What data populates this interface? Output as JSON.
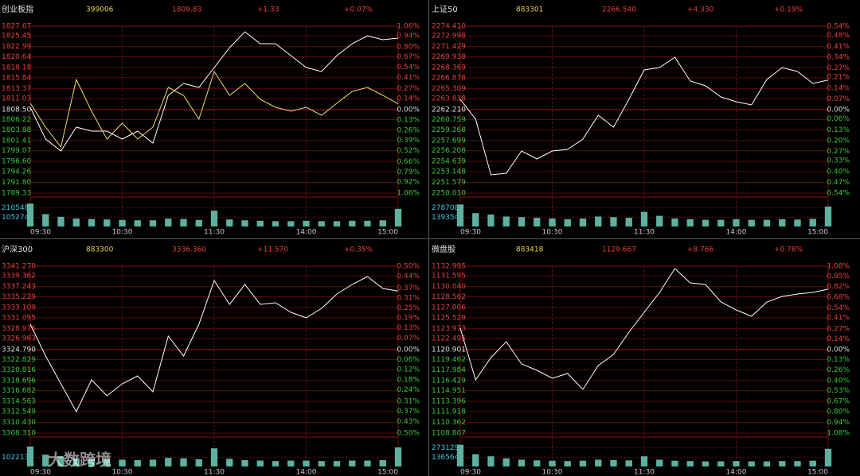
{
  "chart_data": [
    {
      "type": "line",
      "title": "创业板指",
      "quote": [
        "399006",
        "1809.83",
        "+1.33",
        "+0.07%"
      ],
      "x": [
        0,
        10,
        20,
        30,
        40,
        50,
        60,
        70,
        80,
        90,
        100,
        110,
        120,
        130,
        140,
        150,
        160,
        170,
        180,
        190,
        200,
        210,
        220,
        230,
        240
      ],
      "xlim": [
        0,
        240
      ],
      "xticks": [
        {
          "value": 0,
          "label": "09:30"
        },
        {
          "value": 60,
          "label": "10:30"
        },
        {
          "value": 120,
          "label": "11:30"
        },
        {
          "value": 180,
          "label": "14:00"
        },
        {
          "value": 240,
          "label": "15:00"
        }
      ],
      "series": [
        {
          "color": "#ffffff",
          "values": [
            1809.05,
            1801.74,
            1799.01,
            1804.48,
            1803.57,
            1803.57,
            1801.74,
            1803.57,
            1800.83,
            1811.79,
            1814.52,
            1813.61,
            1818.18,
            1822.74,
            1826.39,
            1823.65,
            1823.65,
            1820.91,
            1818.18,
            1817.26,
            1820.91,
            1823.65,
            1825.48,
            1824.57,
            1824.93
          ]
        },
        {
          "color": "#f0e060",
          "values": [
            1809.96,
            1804.48,
            1799.92,
            1815.44,
            1808.13,
            1801.74,
            1805.4,
            1801.74,
            1804.48,
            1813.61,
            1811.79,
            1806.31,
            1817.26,
            1811.79,
            1814.52,
            1810.87,
            1809.05,
            1808.13,
            1809.05,
            1807.22,
            1809.96,
            1812.7,
            1813.61,
            1811.79,
            1809.83
          ]
        }
      ],
      "ylim": [
        1789.33,
        1827.67
      ],
      "yticks": [
        1827.67,
        1825.45,
        1822.99,
        1820.64,
        1818.18,
        1815.84,
        1813.37,
        1811.03,
        {
          "value": 1808.5,
          "label": "1808.50"
        },
        1806.22,
        1803.88,
        1801.41,
        1799.07,
        {
          "value": 1796.6,
          "label": "1796.60"
        },
        1794.26,
        {
          "value": 1791.8,
          "label": "1791.80"
        },
        1789.33
      ],
      "y2lim": [
        -1.06,
        1.06
      ],
      "y2ticks": [
        {
          "value": 1.06,
          "label": "1.06%"
        },
        {
          "value": 0.94,
          "label": "0.94%"
        },
        {
          "value": 0.8,
          "label": "0.80%"
        },
        {
          "value": 0.67,
          "label": "0.67%"
        },
        {
          "value": 0.54,
          "label": "0.54%"
        },
        {
          "value": 0.41,
          "label": "0.41%"
        },
        {
          "value": 0.27,
          "label": "0.27%"
        },
        {
          "value": 0.14,
          "label": "0.14%"
        },
        {
          "value": 0,
          "label": "0.00%"
        },
        {
          "value": -0.13,
          "label": "0.13%"
        },
        {
          "value": -0.26,
          "label": "0.26%"
        },
        {
          "value": -0.39,
          "label": "0.39%"
        },
        {
          "value": -0.52,
          "label": "0.52%"
        },
        {
          "value": -0.66,
          "label": "0.66%"
        },
        {
          "value": -0.79,
          "label": "0.79%"
        },
        {
          "value": -0.92,
          "label": "0.92%"
        },
        {
          "value": -1.06,
          "label": "1.06%"
        }
      ],
      "volume": {
        "color": "#5fb0a0",
        "ylim": [
          0,
          3158226
        ],
        "yticks": [
          2105484,
          1052742
        ],
        "values": [
          2600000,
          1400000,
          1100000,
          900000,
          850000,
          800000,
          750000,
          700000,
          700000,
          900000,
          850000,
          750000,
          1800000,
          800000,
          700000,
          650000,
          600000,
          600000,
          650000,
          600000,
          600000,
          650000,
          650000,
          700000,
          2000000
        ]
      }
    },
    {
      "type": "line",
      "title": "上证50",
      "quote": [
        "883301",
        "2266.540",
        "+4.330",
        "+0.19%"
      ],
      "x": [
        0,
        10,
        20,
        30,
        40,
        50,
        60,
        70,
        80,
        90,
        100,
        110,
        120,
        130,
        140,
        150,
        160,
        170,
        180,
        190,
        200,
        210,
        220,
        230,
        240
      ],
      "xlim": [
        0,
        240
      ],
      "xticks": [
        {
          "value": 0,
          "label": "09:30"
        },
        {
          "value": 60,
          "label": "10:30"
        },
        {
          "value": 120,
          "label": "11:30"
        },
        {
          "value": 180,
          "label": "14:00"
        },
        {
          "value": 240,
          "label": "15:00"
        }
      ],
      "series": [
        {
          "color": "#ffffff",
          "values": [
            2263.72,
            2260.82,
            2252.68,
            2252.91,
            2256.17,
            2255.01,
            2256.17,
            2256.4,
            2257.91,
            2261.4,
            2259.65,
            2263.72,
            2268.02,
            2268.37,
            2269.88,
            2266.39,
            2265.7,
            2264.07,
            2263.37,
            2262.91,
            2266.63,
            2268.37,
            2267.79,
            2266.04,
            2266.54
          ]
        }
      ],
      "ylim": [
        2250.01,
        2274.41
      ],
      "yticks": [
        {
          "value": 2274.41,
          "label": "2274.410"
        },
        2272.998,
        2271.429,
        2269.938,
        2268.369,
        2266.878,
        2265.309,
        2263.818,
        {
          "value": 2262.21,
          "label": "2262.210"
        },
        2260.759,
        2259.268,
        2257.699,
        2256.208,
        2254.639,
        2253.148,
        2251.579,
        {
          "value": 2250.01,
          "label": "2250.010"
        }
      ],
      "y2lim": [
        -0.54,
        0.54
      ],
      "y2ticks": [
        {
          "value": 0.54,
          "label": "0.54%"
        },
        {
          "value": 0.48,
          "label": "0.48%"
        },
        {
          "value": 0.41,
          "label": "0.41%"
        },
        {
          "value": 0.34,
          "label": "0.34%"
        },
        {
          "value": 0.27,
          "label": "0.27%"
        },
        {
          "value": 0.21,
          "label": "0.21%"
        },
        {
          "value": 0.14,
          "label": "0.14%"
        },
        {
          "value": 0.07,
          "label": "0.07%"
        },
        {
          "value": 0,
          "label": "0.00%"
        },
        {
          "value": -0.06,
          "label": "0.06%"
        },
        {
          "value": -0.13,
          "label": "0.13%"
        },
        {
          "value": -0.2,
          "label": "0.20%"
        },
        {
          "value": -0.27,
          "label": "0.27%"
        },
        {
          "value": -0.33,
          "label": "0.33%"
        },
        {
          "value": -0.4,
          "label": "0.40%"
        },
        {
          "value": -0.47,
          "label": "0.47%"
        },
        {
          "value": -0.54,
          "label": "0.54%"
        }
      ],
      "volume": {
        "color": "#5fb0a0",
        "ylim": [
          0,
          418062
        ],
        "yticks": [
          278708,
          139354
        ],
        "values": [
          330000,
          200000,
          180000,
          150000,
          140000,
          130000,
          120000,
          110000,
          120000,
          150000,
          140000,
          130000,
          220000,
          160000,
          120000,
          110000,
          100000,
          100000,
          110000,
          100000,
          100000,
          110000,
          105000,
          115000,
          300000
        ]
      }
    },
    {
      "type": "line",
      "title": "沪深300",
      "quote": [
        "883300",
        "3336.360",
        "+11.570",
        "+0.35%"
      ],
      "x": [
        0,
        10,
        20,
        30,
        40,
        50,
        60,
        70,
        80,
        90,
        100,
        110,
        120,
        130,
        140,
        150,
        160,
        170,
        180,
        190,
        200,
        210,
        220,
        230,
        240
      ],
      "xlim": [
        0,
        240
      ],
      "xticks": [
        {
          "value": 0,
          "label": "09:30"
        },
        {
          "value": 60,
          "label": "10:30"
        },
        {
          "value": 120,
          "label": "11:30"
        },
        {
          "value": 180,
          "label": "14:00"
        },
        {
          "value": 240,
          "label": "15:00"
        }
      ],
      "series": [
        {
          "color": "#ffffff",
          "values": [
            3329.81,
            3323.53,
            3318.04,
            3312.55,
            3318.83,
            3315.69,
            3318.04,
            3319.61,
            3316.47,
            3327.46,
            3323.53,
            3329.81,
            3338.44,
            3333.74,
            3337.66,
            3333.74,
            3334.05,
            3332.17,
            3331.07,
            3332.95,
            3335.78,
            3337.66,
            3339.23,
            3336.88,
            3336.36
          ]
        }
      ],
      "ylim": [
        3308.31,
        3341.27
      ],
      "yticks": [
        {
          "value": 3341.27,
          "label": "3341.270"
        },
        3339.362,
        3337.243,
        3335.229,
        3333.109,
        3331.095,
        3328.976,
        3326.963,
        {
          "value": 3324.79,
          "label": "3324.790"
        },
        3322.829,
        3320.816,
        3318.696,
        3316.682,
        3314.563,
        3312.549,
        {
          "value": 3310.43,
          "label": "3310.430"
        },
        {
          "value": 3308.31,
          "label": "3308.310"
        }
      ],
      "y2lim": [
        -0.5,
        0.5
      ],
      "y2ticks": [
        {
          "value": 0.5,
          "label": "0.50%"
        },
        {
          "value": 0.44,
          "label": "0.44%"
        },
        {
          "value": 0.37,
          "label": "0.37%"
        },
        {
          "value": 0.31,
          "label": "0.31%"
        },
        {
          "value": 0.25,
          "label": "0.25%"
        },
        {
          "value": 0.19,
          "label": "0.19%"
        },
        {
          "value": 0.13,
          "label": "0.13%"
        },
        {
          "value": 0.07,
          "label": "0.07%"
        },
        {
          "value": 0,
          "label": "0.00%"
        },
        {
          "value": -0.06,
          "label": "0.06%"
        },
        {
          "value": -0.12,
          "label": "0.12%"
        },
        {
          "value": -0.18,
          "label": "0.18%"
        },
        {
          "value": -0.24,
          "label": "0.24%"
        },
        {
          "value": -0.31,
          "label": "0.31%"
        },
        {
          "value": -0.37,
          "label": "0.37%"
        },
        {
          "value": -0.43,
          "label": "0.43%"
        },
        {
          "value": -0.5,
          "label": "0.50%"
        }
      ],
      "volume": {
        "color": "#5fb0a0",
        "ylim": [
          0,
          3066414
        ],
        "yticks": [
          1022138
        ],
        "values": [
          2200000,
          1300000,
          1100000,
          900000,
          850000,
          800000,
          750000,
          700000,
          750000,
          950000,
          900000,
          800000,
          2000000,
          850000,
          700000,
          650000,
          600000,
          650000,
          650000,
          600000,
          600000,
          650000,
          650000,
          700000,
          2100000
        ]
      }
    },
    {
      "type": "line",
      "title": "微盘股",
      "quote": [
        "883418",
        "1129.667",
        "+8.766",
        "+0.78%"
      ],
      "x": [
        0,
        10,
        20,
        30,
        40,
        50,
        60,
        70,
        80,
        90,
        100,
        110,
        120,
        130,
        140,
        150,
        160,
        170,
        180,
        190,
        200,
        210,
        220,
        230,
        240
      ],
      "xlim": [
        0,
        240
      ],
      "xticks": [
        {
          "value": 0,
          "label": "09:30"
        },
        {
          "value": 60,
          "label": "10:30"
        },
        {
          "value": 120,
          "label": "11:30"
        },
        {
          "value": 180,
          "label": "14:00"
        },
        {
          "value": 240,
          "label": "15:00"
        }
      ],
      "series": [
        {
          "color": "#ffffff",
          "values": [
            1124.01,
            1116.52,
            1119.75,
            1122.05,
            1118.83,
            1117.91,
            1116.75,
            1117.45,
            1115.14,
            1118.6,
            1120.21,
            1123.44,
            1126.31,
            1129.19,
            1132.65,
            1130.58,
            1130.35,
            1127.81,
            1126.66,
            1125.74,
            1127.81,
            1128.62,
            1128.96,
            1129.19,
            1129.667
          ]
        }
      ],
      "ylim": [
        1108.807,
        1132.995
      ],
      "yticks": [
        1132.995,
        1131.595,
        {
          "value": 1130.04,
          "label": "1130.040"
        },
        1128.562,
        1127.006,
        1125.529,
        1123.973,
        1122.495,
        1120.901,
        1119.462,
        1117.984,
        1116.429,
        1114.951,
        1113.396,
        1111.918,
        1110.362,
        1108.807
      ],
      "y2lim": [
        -1.08,
        1.08
      ],
      "y2ticks": [
        {
          "value": 1.08,
          "label": "1.08%"
        },
        {
          "value": 0.95,
          "label": "0.95%"
        },
        {
          "value": 0.82,
          "label": "0.82%"
        },
        {
          "value": 0.68,
          "label": "0.68%"
        },
        {
          "value": 0.54,
          "label": "0.54%"
        },
        {
          "value": 0.41,
          "label": "0.41%"
        },
        {
          "value": 0.27,
          "label": "0.27%"
        },
        {
          "value": 0.14,
          "label": "0.14%"
        },
        {
          "value": 0,
          "label": "0.00%"
        },
        {
          "value": -0.13,
          "label": "0.13%"
        },
        {
          "value": -0.26,
          "label": "0.26%"
        },
        {
          "value": -0.4,
          "label": "0.40%"
        },
        {
          "value": -0.53,
          "label": "0.53%"
        },
        {
          "value": -0.67,
          "label": "0.67%"
        },
        {
          "value": -0.8,
          "label": "0.80%"
        },
        {
          "value": -0.94,
          "label": "0.94%"
        },
        {
          "value": -1.08,
          "label": "1.08%"
        }
      ],
      "volume": {
        "color": "#5fb0a0",
        "ylim": [
          0,
          409693
        ],
        "yticks": [
          273129,
          136564
        ],
        "values": [
          320000,
          180000,
          150000,
          120000,
          100000,
          90000,
          85000,
          80000,
          85000,
          100000,
          95000,
          90000,
          150000,
          100000,
          85000,
          80000,
          75000,
          75000,
          80000,
          75000,
          75000,
          80000,
          80000,
          85000,
          260000
        ]
      }
    }
  ],
  "watermark": "大数跨境"
}
